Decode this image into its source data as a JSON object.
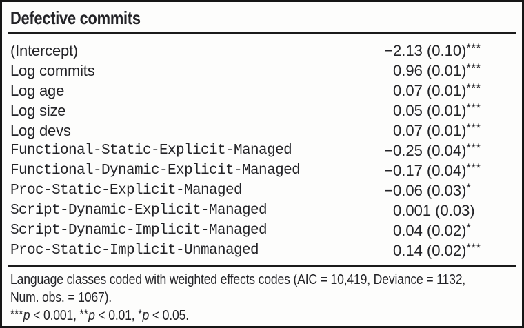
{
  "table": {
    "title": "Defective commits",
    "rows": [
      {
        "label": "(Intercept)",
        "sign": "−",
        "value": "2.13 (0.10)",
        "stars": "***"
      },
      {
        "label": "Log commits",
        "sign": "",
        "value": "0.96 (0.01)",
        "stars": "***"
      },
      {
        "label": "Log age",
        "sign": "",
        "value": "0.07 (0.01)",
        "stars": "***"
      },
      {
        "label": "Log size",
        "sign": "",
        "value": "0.05 (0.01)",
        "stars": "***"
      },
      {
        "label": "Log devs",
        "sign": "",
        "value": "0.07 (0.01)",
        "stars": "***"
      },
      {
        "label": "Functional-Static-Explicit-Managed",
        "sign": "−",
        "value": "0.25 (0.04)",
        "stars": "***"
      },
      {
        "label": "Functional-Dynamic-Explicit-Managed",
        "sign": "−",
        "value": "0.17 (0.04)",
        "stars": "***"
      },
      {
        "label": "Proc-Static-Explicit-Managed",
        "sign": "−",
        "value": "0.06 (0.03)",
        "stars": "*"
      },
      {
        "label": "Script-Dynamic-Explicit-Managed",
        "sign": "",
        "value": "0.001 (0.03)",
        "stars": ""
      },
      {
        "label": "Script-Dynamic-Implicit-Managed",
        "sign": "",
        "value": "0.04 (0.02)",
        "stars": "*"
      },
      {
        "label": "Proc-Static-Implicit-Unmanaged",
        "sign": "",
        "value": "0.14 (0.02)",
        "stars": "***"
      }
    ],
    "notes": {
      "line1": "Language classes coded with weighted effects codes (AIC = 10,419, Deviance = 1132,",
      "line2": "Num. obs. = 1067).",
      "significance": [
        {
          "stars": "***",
          "p": "p",
          "rest": " < 0.001, "
        },
        {
          "stars": "**",
          "p": "p",
          "rest": " < 0.01, "
        },
        {
          "stars": "*",
          "p": "p",
          "rest": " < 0.05."
        }
      ]
    }
  }
}
